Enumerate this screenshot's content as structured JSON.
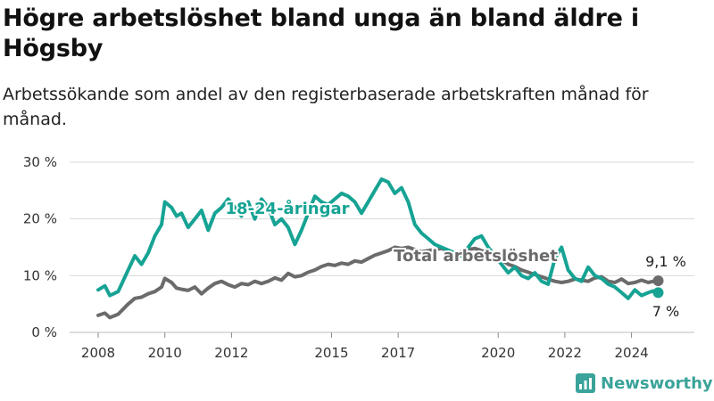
{
  "title": "Högre arbetslöshet bland unga än bland äldre i Högsby",
  "subtitle": "Arbetssökande som andel av den registerbaserade arbetskraften månad för månad.",
  "brand": {
    "name": "Newsworthy",
    "icon": "bar-chart-logo-icon"
  },
  "colors": {
    "youth": "#16a394",
    "total": "#6b6b6b",
    "grid": "#d9d9d9",
    "brand": "#3aa39a"
  },
  "chart_data": {
    "type": "line",
    "title": "",
    "xlabel": "",
    "ylabel": "",
    "ylim": [
      0,
      30
    ],
    "xlim": [
      2007.5,
      2025.4
    ],
    "y_ticks": [
      0,
      10,
      20,
      30
    ],
    "y_tick_labels": [
      "0 %",
      "10 %",
      "20 %",
      "30 %"
    ],
    "x_ticks": [
      2008,
      2010,
      2012,
      2015,
      2017,
      2020,
      2022,
      2024
    ],
    "x_tick_labels": [
      "2008",
      "2010",
      "2012",
      "2015",
      "2017",
      "2020",
      "2022",
      "2024"
    ],
    "grid": true,
    "legend": "direct labels on lines",
    "series": [
      {
        "name": "18-24-åringar",
        "color": "#16a394",
        "x": [
          2008.0,
          2008.2,
          2008.35,
          2008.6,
          2008.9,
          2009.1,
          2009.3,
          2009.5,
          2009.7,
          2009.9,
          2010.0,
          2010.2,
          2010.35,
          2010.5,
          2010.7,
          2010.9,
          2011.1,
          2011.3,
          2011.5,
          2011.7,
          2011.9,
          2012.1,
          2012.3,
          2012.5,
          2012.7,
          2012.9,
          2013.1,
          2013.3,
          2013.5,
          2013.7,
          2013.9,
          2014.1,
          2014.3,
          2014.5,
          2014.7,
          2014.9,
          2015.1,
          2015.3,
          2015.5,
          2015.7,
          2015.9,
          2016.1,
          2016.3,
          2016.5,
          2016.7,
          2016.9,
          2017.1,
          2017.3,
          2017.5,
          2017.7,
          2017.9,
          2018.1,
          2018.3,
          2018.5,
          2018.7,
          2018.9,
          2019.1,
          2019.3,
          2019.5,
          2019.7,
          2019.9,
          2020.1,
          2020.3,
          2020.5,
          2020.7,
          2020.9,
          2021.1,
          2021.3,
          2021.5,
          2021.7,
          2021.9,
          2022.1,
          2022.3,
          2022.5,
          2022.7,
          2022.9,
          2023.1,
          2023.3,
          2023.5,
          2023.7,
          2023.9,
          2024.1,
          2024.3,
          2024.5,
          2024.65,
          2024.8
        ],
        "values": [
          7.5,
          8.2,
          6.5,
          7.2,
          11.0,
          13.5,
          12.0,
          14.0,
          17.0,
          19.0,
          23.0,
          22.0,
          20.5,
          21.0,
          18.5,
          20.0,
          21.5,
          18.0,
          21.0,
          22.0,
          23.5,
          22.0,
          20.5,
          23.0,
          20.0,
          23.5,
          22.0,
          19.0,
          20.0,
          18.5,
          15.5,
          18.0,
          21.0,
          24.0,
          23.0,
          22.5,
          23.5,
          24.5,
          24.0,
          23.0,
          21.0,
          23.0,
          25.0,
          27.0,
          26.5,
          24.5,
          25.5,
          23.0,
          19.0,
          17.5,
          16.5,
          15.5,
          15.0,
          14.5,
          14.0,
          13.5,
          15.0,
          16.5,
          17.0,
          15.0,
          13.5,
          12.0,
          10.5,
          11.5,
          10.0,
          9.5,
          10.5,
          9.0,
          8.5,
          13.0,
          15.0,
          11.0,
          9.5,
          9.0,
          11.5,
          10.0,
          9.5,
          8.5,
          8.0,
          7.0,
          6.0,
          7.5,
          6.5,
          7.0,
          7.3,
          7.0
        ]
      },
      {
        "name": "Total arbetslöshet",
        "color": "#6b6b6b",
        "x": [
          2008.0,
          2008.2,
          2008.35,
          2008.6,
          2008.9,
          2009.1,
          2009.3,
          2009.5,
          2009.7,
          2009.9,
          2010.0,
          2010.2,
          2010.35,
          2010.5,
          2010.7,
          2010.9,
          2011.1,
          2011.3,
          2011.5,
          2011.7,
          2011.9,
          2012.1,
          2012.3,
          2012.5,
          2012.7,
          2012.9,
          2013.1,
          2013.3,
          2013.5,
          2013.7,
          2013.9,
          2014.1,
          2014.3,
          2014.5,
          2014.7,
          2014.9,
          2015.1,
          2015.3,
          2015.5,
          2015.7,
          2015.9,
          2016.1,
          2016.3,
          2016.5,
          2016.7,
          2016.9,
          2017.1,
          2017.3,
          2017.5,
          2017.7,
          2017.9,
          2018.1,
          2018.3,
          2018.5,
          2018.7,
          2018.9,
          2019.1,
          2019.3,
          2019.5,
          2019.7,
          2019.9,
          2020.1,
          2020.3,
          2020.5,
          2020.7,
          2020.9,
          2021.1,
          2021.3,
          2021.5,
          2021.7,
          2021.9,
          2022.1,
          2022.3,
          2022.5,
          2022.7,
          2022.9,
          2023.1,
          2023.3,
          2023.5,
          2023.7,
          2023.9,
          2024.1,
          2024.3,
          2024.5,
          2024.65,
          2024.8
        ],
        "values": [
          3.0,
          3.4,
          2.6,
          3.2,
          5.0,
          6.0,
          6.2,
          6.8,
          7.2,
          8.0,
          9.5,
          8.8,
          7.8,
          7.6,
          7.4,
          8.0,
          6.8,
          7.8,
          8.6,
          9.0,
          8.4,
          8.0,
          8.6,
          8.4,
          9.0,
          8.6,
          9.0,
          9.6,
          9.2,
          10.4,
          9.8,
          10.0,
          10.6,
          11.0,
          11.6,
          12.0,
          11.8,
          12.2,
          12.0,
          12.6,
          12.4,
          13.0,
          13.6,
          14.0,
          14.4,
          15.0,
          14.8,
          15.0,
          14.6,
          14.2,
          14.4,
          14.6,
          14.8,
          14.4,
          14.0,
          14.2,
          14.6,
          14.8,
          14.4,
          14.0,
          13.6,
          12.8,
          12.0,
          11.6,
          11.0,
          10.6,
          10.2,
          9.8,
          9.4,
          9.0,
          8.8,
          9.0,
          9.4,
          9.2,
          9.0,
          9.6,
          9.8,
          9.0,
          8.8,
          9.4,
          8.6,
          8.8,
          9.2,
          8.8,
          9.0,
          9.1
        ]
      }
    ],
    "annotations": [
      {
        "text": "9,1 %",
        "series": "Total arbetslöshet",
        "x": 2024.8,
        "y": 9.1
      },
      {
        "text": "7 %",
        "series": "18-24-åringar",
        "x": 2024.8,
        "y": 7.0
      }
    ],
    "line_labels": [
      {
        "text": "18-24-åringar",
        "series": "18-24-åringar"
      },
      {
        "text": "Total arbetslöshet",
        "series": "Total arbetslöshet"
      }
    ]
  }
}
